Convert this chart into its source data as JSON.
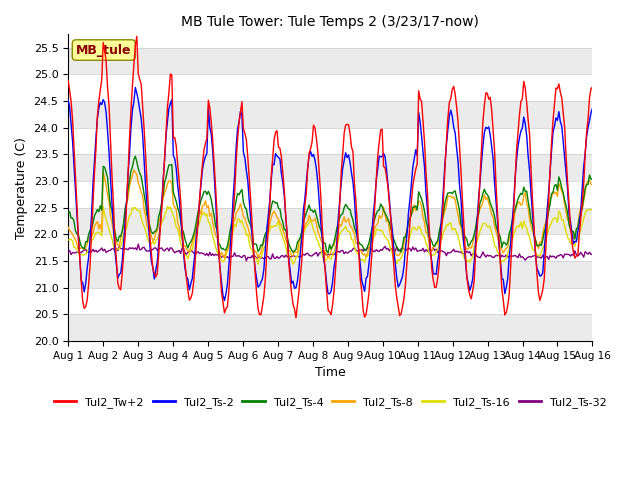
{
  "title": "MB Tule Tower: Tule Temps 2 (3/23/17-now)",
  "xlabel": "Time",
  "ylabel": "Temperature (C)",
  "ylim": [
    20.0,
    25.75
  ],
  "yticks": [
    20.0,
    20.5,
    21.0,
    21.5,
    22.0,
    22.5,
    23.0,
    23.5,
    24.0,
    24.5,
    25.0,
    25.5
  ],
  "xlim": [
    0,
    15
  ],
  "xtick_labels": [
    "Aug 1",
    "Aug 2",
    "Aug 3",
    "Aug 4",
    "Aug 5",
    "Aug 6",
    "Aug 7",
    "Aug 8",
    "Aug 9",
    "Aug 10",
    "Aug 11",
    "Aug 12",
    "Aug 13",
    "Aug 14",
    "Aug 15",
    "Aug 16"
  ],
  "series_colors": [
    "red",
    "blue",
    "green",
    "orange",
    "yellow",
    "purple"
  ],
  "series_labels": [
    "Tul2_Tw+2",
    "Tul2_Ts-2",
    "Tul2_Ts-4",
    "Tul2_Ts-8",
    "Tul2_Ts-16",
    "Tul2_Ts-32"
  ],
  "background_color": "#ffffff",
  "inset_label": "MB_tule",
  "n_days": 15,
  "points_per_day": 24
}
